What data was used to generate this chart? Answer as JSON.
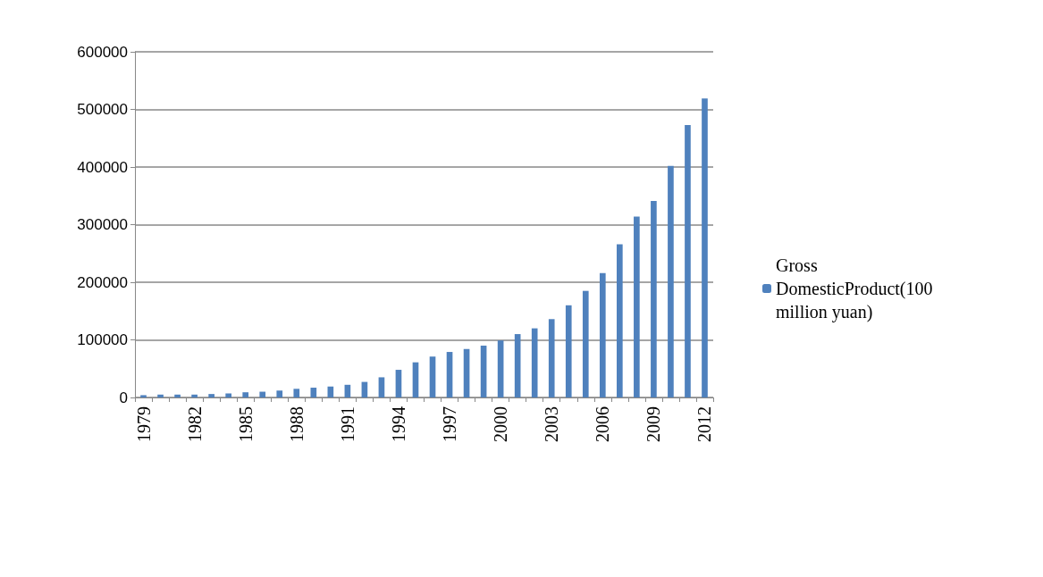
{
  "chart_data": {
    "type": "bar",
    "categories": [
      "1979",
      null,
      null,
      "1982",
      null,
      null,
      "1985",
      null,
      null,
      "1988",
      null,
      null,
      "1991",
      null,
      null,
      "1994",
      null,
      null,
      "1997",
      null,
      null,
      "2000",
      null,
      null,
      "2003",
      null,
      null,
      "2006",
      null,
      null,
      "2009",
      null,
      null,
      "2012"
    ],
    "series": [
      {
        "name": "Gross DomesticProduct(100 million yuan)",
        "color": "#4f81bd",
        "values": [
          4000,
          5000,
          5000,
          5000,
          6000,
          7000,
          9000,
          10000,
          12000,
          15000,
          17000,
          19000,
          22000,
          27000,
          35000,
          48000,
          61000,
          71000,
          79000,
          84000,
          90000,
          99000,
          110000,
          120000,
          136000,
          160000,
          185000,
          216000,
          266000,
          314000,
          341000,
          402000,
          473000,
          519000
        ]
      }
    ],
    "ylim": [
      0,
      600000
    ],
    "yticks": [
      0,
      100000,
      200000,
      300000,
      400000,
      500000,
      600000
    ],
    "grid": "y",
    "legend": "right"
  }
}
